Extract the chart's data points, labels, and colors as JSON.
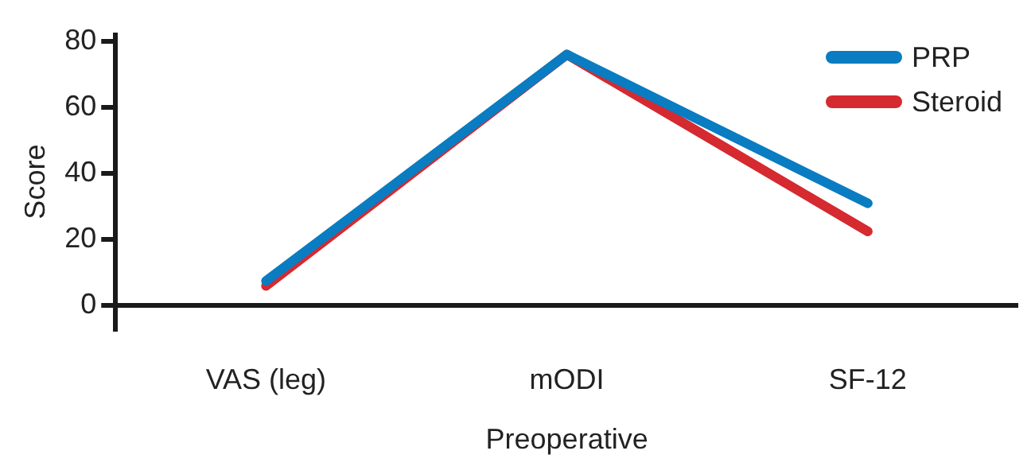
{
  "chart_data": {
    "type": "line",
    "categories": [
      "VAS (leg)",
      "mODI",
      "SF-12"
    ],
    "series": [
      {
        "name": "PRP",
        "color": "#0a7cc1",
        "values": [
          7.5,
          76,
          31
        ]
      },
      {
        "name": "Steroid",
        "color": "#d42a30",
        "values": [
          6,
          76,
          22.5
        ]
      }
    ],
    "ylim": [
      -7,
      82
    ],
    "yticks": [
      0,
      20,
      40,
      60,
      80
    ],
    "ylabel": "Score",
    "xlabel": "Preoperative",
    "legend": "top right"
  }
}
